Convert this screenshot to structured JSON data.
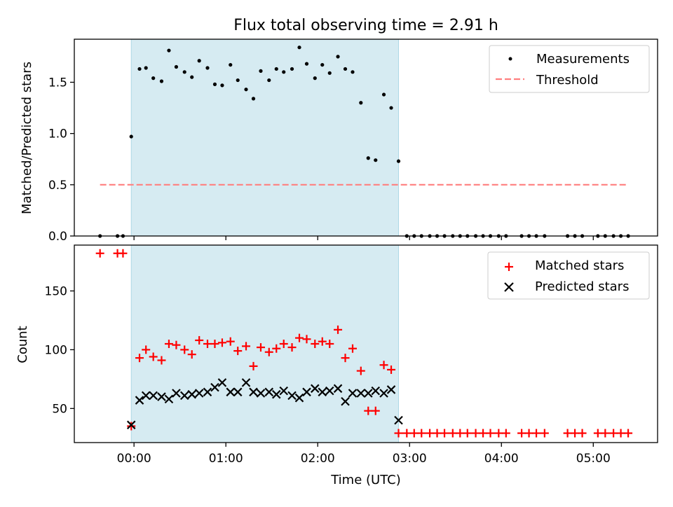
{
  "figure": {
    "title": "Flux total observing time = 2.91 h"
  },
  "chart_data": [
    {
      "type": "scatter",
      "panel": "top",
      "title": "Flux total observing time = 2.91 h",
      "xlabel": "",
      "ylabel": "Matched/Predicted stars",
      "xlim": [
        -0.65,
        5.7
      ],
      "ylim": [
        0.0,
        1.92
      ],
      "yticks": [
        0.0,
        0.5,
        1.0,
        1.5
      ],
      "ytick_labels": [
        "0.0",
        "0.5",
        "1.0",
        "1.5"
      ],
      "xticks": [
        0,
        1,
        2,
        3,
        4,
        5
      ],
      "grid": false,
      "legend_position": "top-right",
      "highlight_span": {
        "x_start": -0.03,
        "x_end": 2.88,
        "color": "#add8e6"
      },
      "series": [
        {
          "name": "Measurements",
          "kind": "scatter",
          "marker": "dot",
          "color": "#000000",
          "x": [
            -0.37,
            -0.18,
            -0.12,
            -0.03,
            0.06,
            0.13,
            0.21,
            0.3,
            0.38,
            0.46,
            0.55,
            0.63,
            0.71,
            0.8,
            0.88,
            0.96,
            1.05,
            1.13,
            1.22,
            1.3,
            1.38,
            1.47,
            1.55,
            1.63,
            1.72,
            1.8,
            1.88,
            1.97,
            2.05,
            2.13,
            2.22,
            2.3,
            2.38,
            2.47,
            2.55,
            2.63,
            2.72,
            2.8,
            2.88,
            2.97,
            3.05,
            3.13,
            3.22,
            3.3,
            3.38,
            3.47,
            3.55,
            3.63,
            3.72,
            3.8,
            3.88,
            3.97,
            4.05,
            4.22,
            4.3,
            4.38,
            4.47,
            4.72,
            4.8,
            4.88,
            5.05,
            5.13,
            5.22,
            5.3,
            5.38
          ],
          "y": [
            0.0,
            0.0,
            0.0,
            0.97,
            1.63,
            1.64,
            1.54,
            1.51,
            1.81,
            1.65,
            1.6,
            1.55,
            1.71,
            1.64,
            1.48,
            1.47,
            1.67,
            1.52,
            1.43,
            1.34,
            1.61,
            1.52,
            1.63,
            1.6,
            1.63,
            1.84,
            1.68,
            1.54,
            1.67,
            1.59,
            1.75,
            1.63,
            1.6,
            1.3,
            0.76,
            0.74,
            1.38,
            1.25,
            0.73,
            0.0,
            0.0,
            0.0,
            0.0,
            0.0,
            0.0,
            0.0,
            0.0,
            0.0,
            0.0,
            0.0,
            0.0,
            0.0,
            0.0,
            0.0,
            0.0,
            0.0,
            0.0,
            0.0,
            0.0,
            0.0,
            0.0,
            0.0,
            0.0,
            0.0,
            0.0
          ]
        },
        {
          "name": "Threshold",
          "kind": "line",
          "style": "dashed",
          "color": "#ff7f7f",
          "x": [
            -0.37,
            5.38
          ],
          "y": [
            0.5,
            0.5
          ]
        }
      ]
    },
    {
      "type": "scatter",
      "panel": "bottom",
      "xlabel": "Time (UTC)",
      "ylabel": "Count",
      "xlim": [
        -0.65,
        5.7
      ],
      "ylim": [
        21,
        189
      ],
      "yticks": [
        50,
        100,
        150
      ],
      "ytick_labels": [
        "50",
        "100",
        "150"
      ],
      "xticks": [
        0,
        1,
        2,
        3,
        4,
        5
      ],
      "xtick_labels": [
        "00:00",
        "01:00",
        "02:00",
        "03:00",
        "04:00",
        "05:00"
      ],
      "grid": false,
      "legend_position": "top-right",
      "highlight_span": {
        "x_start": -0.03,
        "x_end": 2.88,
        "color": "#add8e6"
      },
      "series": [
        {
          "name": "Matched stars",
          "marker": "plus",
          "color": "#ff0000",
          "x": [
            -0.37,
            -0.18,
            -0.12,
            -0.03,
            0.06,
            0.13,
            0.21,
            0.3,
            0.38,
            0.46,
            0.55,
            0.63,
            0.71,
            0.8,
            0.88,
            0.96,
            1.05,
            1.13,
            1.22,
            1.3,
            1.38,
            1.47,
            1.55,
            1.63,
            1.72,
            1.8,
            1.88,
            1.97,
            2.05,
            2.13,
            2.22,
            2.3,
            2.38,
            2.47,
            2.55,
            2.63,
            2.72,
            2.8,
            2.88,
            2.97,
            3.05,
            3.13,
            3.22,
            3.3,
            3.38,
            3.47,
            3.55,
            3.63,
            3.72,
            3.8,
            3.88,
            3.97,
            4.05,
            4.22,
            4.3,
            4.38,
            4.47,
            4.72,
            4.8,
            4.88,
            5.05,
            5.13,
            5.22,
            5.3,
            5.38
          ],
          "y": [
            182,
            182,
            182,
            35,
            93,
            100,
            94,
            91,
            105,
            104,
            100,
            96,
            108,
            105,
            105,
            106,
            107,
            99,
            103,
            86,
            102,
            98,
            101,
            105,
            102,
            110,
            109,
            105,
            107,
            105,
            117,
            93,
            101,
            82,
            48,
            48,
            87,
            83,
            29,
            29,
            29,
            29,
            29,
            29,
            29,
            29,
            29,
            29,
            29,
            29,
            29,
            29,
            29,
            29,
            29,
            29,
            29,
            29,
            29,
            29,
            29,
            29,
            29,
            29,
            29
          ]
        },
        {
          "name": "Predicted stars",
          "marker": "x",
          "color": "#000000",
          "x": [
            -0.03,
            0.06,
            0.13,
            0.21,
            0.3,
            0.38,
            0.46,
            0.55,
            0.63,
            0.71,
            0.8,
            0.88,
            0.96,
            1.05,
            1.13,
            1.22,
            1.3,
            1.38,
            1.47,
            1.55,
            1.63,
            1.72,
            1.8,
            1.88,
            1.97,
            2.05,
            2.13,
            2.22,
            2.3,
            2.38,
            2.47,
            2.55,
            2.63,
            2.72,
            2.8,
            2.88
          ],
          "y": [
            36,
            57,
            61,
            61,
            60,
            58,
            63,
            61,
            62,
            63,
            64,
            68,
            72,
            64,
            64,
            72,
            64,
            63,
            64,
            62,
            65,
            61,
            59,
            64,
            67,
            64,
            65,
            67,
            56,
            63,
            63,
            63,
            65,
            63,
            66,
            40
          ]
        }
      ]
    }
  ]
}
